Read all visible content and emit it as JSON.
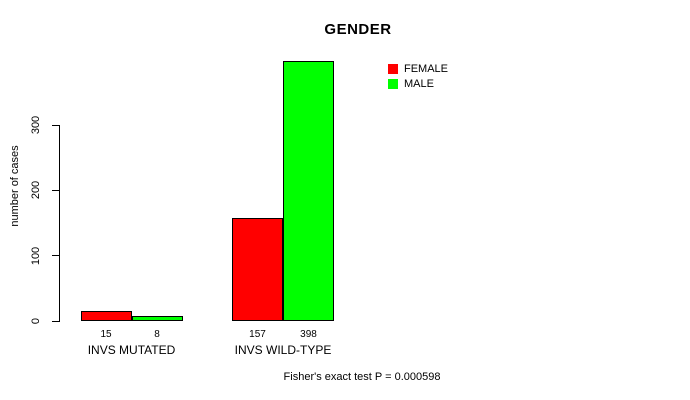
{
  "chart_data": {
    "type": "bar",
    "title": "GENDER",
    "xlabel": "",
    "ylabel": "number of cases",
    "categories": [
      "INVS MUTATED",
      "INVS WILD-TYPE"
    ],
    "series": [
      {
        "name": "FEMALE",
        "color": "#FF0000",
        "values": [
          15,
          157
        ]
      },
      {
        "name": "MALE",
        "color": "#00FF00",
        "values": [
          8,
          398
        ]
      }
    ],
    "yticks": [
      0,
      100,
      200,
      300
    ],
    "ylim": [
      0,
      400
    ],
    "grid": false,
    "bar_value_labels": [
      [
        15,
        8
      ],
      [
        157,
        398
      ]
    ],
    "legend": {
      "position": "top-right",
      "entries": [
        "FEMALE",
        "MALE"
      ]
    },
    "annotation": "Fisher's exact test P = 0.000598",
    "background_color": "#FFFFFF",
    "text_color": "#000000"
  }
}
